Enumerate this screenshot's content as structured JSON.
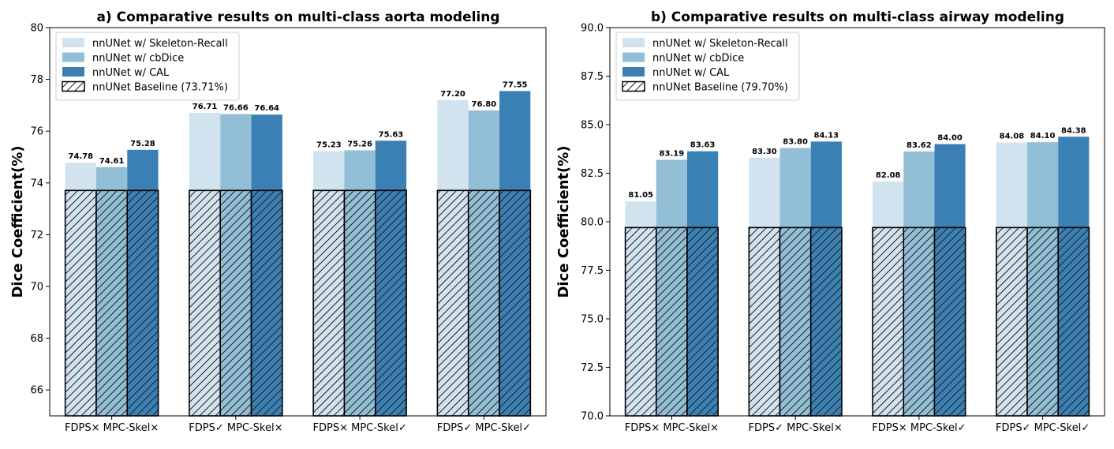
{
  "chart_data": [
    {
      "type": "bar",
      "title": "a) Comparative results on multi-class aorta modeling",
      "xlabel": "",
      "ylabel": "Dice Coefficient(%)",
      "ylim": [
        65,
        80
      ],
      "yticks": [
        66,
        68,
        70,
        72,
        74,
        76,
        78,
        80
      ],
      "ytick_labels": [
        "66",
        "68",
        "70",
        "72",
        "74",
        "76",
        "78",
        "80"
      ],
      "categories": [
        "FDPS× MPC-Skel×",
        "FDPS✓ MPC-Skel×",
        "FDPS× MPC-Skel✓",
        "FDPS✓ MPC-Skel✓"
      ],
      "series": [
        {
          "name": "nnUNet w/ Skeleton-Recall",
          "color": "#d2e3f0",
          "values": [
            74.78,
            76.71,
            75.23,
            77.2
          ],
          "labels": [
            "74.78",
            "76.71",
            "75.23",
            "77.20"
          ]
        },
        {
          "name": "nnUNet w/ cbDice",
          "color": "#92bed6",
          "values": [
            74.61,
            76.66,
            75.26,
            76.8
          ],
          "labels": [
            "74.61",
            "76.66",
            "75.26",
            "76.80"
          ]
        },
        {
          "name": "nnUNet w/ CAL",
          "color": "#3b80b5",
          "values": [
            75.28,
            76.64,
            75.63,
            77.55
          ],
          "labels": [
            "75.28",
            "76.64",
            "75.63",
            "77.55"
          ]
        }
      ],
      "baseline": {
        "name": "nnUNet Baseline (73.71%)",
        "value": 73.71
      },
      "legend": "top-left",
      "grid": false
    },
    {
      "type": "bar",
      "title": "b) Comparative results on multi-class airway modeling",
      "xlabel": "",
      "ylabel": "Dice Coefficient(%)",
      "ylim": [
        70,
        90
      ],
      "yticks": [
        70,
        72.5,
        75,
        77.5,
        80,
        82.5,
        85,
        87.5,
        90
      ],
      "ytick_labels": [
        "70.0",
        "72.5",
        "75.0",
        "77.5",
        "80.0",
        "82.5",
        "85.0",
        "87.5",
        "90.0"
      ],
      "categories": [
        "FDPS× MPC-Skel×",
        "FDPS✓ MPC-Skel×",
        "FDPS× MPC-Skel✓",
        "FDPS✓ MPC-Skel✓"
      ],
      "series": [
        {
          "name": "nnUNet w/ Skeleton-Recall",
          "color": "#d2e3f0",
          "values": [
            81.05,
            83.3,
            82.08,
            84.08
          ],
          "labels": [
            "81.05",
            "83.30",
            "82.08",
            "84.08"
          ]
        },
        {
          "name": "nnUNet w/ cbDice",
          "color": "#92bed6",
          "values": [
            83.19,
            83.8,
            83.62,
            84.1
          ],
          "labels": [
            "83.19",
            "83.80",
            "83.62",
            "84.10"
          ]
        },
        {
          "name": "nnUNet w/ CAL",
          "color": "#3b80b5",
          "values": [
            83.63,
            84.13,
            84.0,
            84.38
          ],
          "labels": [
            "83.63",
            "84.13",
            "84.00",
            "84.38"
          ]
        }
      ],
      "baseline": {
        "name": "nnUNet Baseline (79.70%)",
        "value": 79.7
      },
      "legend": "top-left",
      "grid": false
    }
  ]
}
